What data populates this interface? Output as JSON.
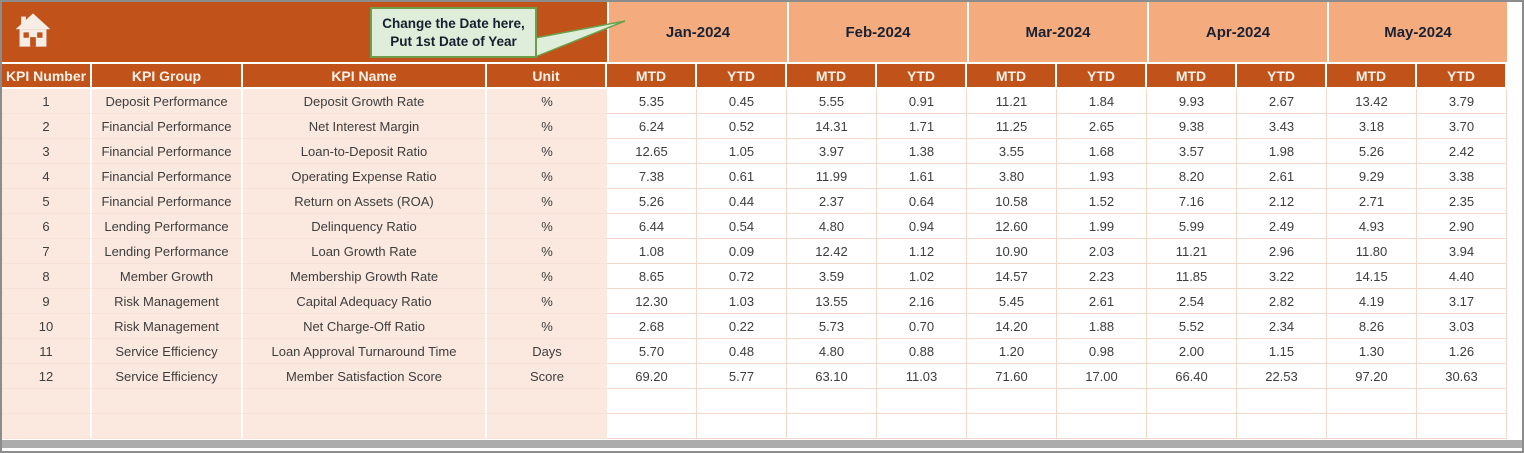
{
  "callout": {
    "line1": "Change the Date here,",
    "line2": "Put 1st Date of Year"
  },
  "icons": {
    "home": "home-icon"
  },
  "table": {
    "months": [
      "Jan-2024",
      "Feb-2024",
      "Mar-2024",
      "Apr-2024",
      "May-2024"
    ],
    "sub_headers": [
      "MTD",
      "YTD"
    ],
    "label_columns": [
      "KPI Number",
      "KPI Group",
      "KPI Name",
      "Unit"
    ],
    "rows": [
      {
        "num": "1",
        "group": "Deposit Performance",
        "name": "Deposit Growth Rate",
        "unit": "%",
        "values": [
          "5.35",
          "0.45",
          "5.55",
          "0.91",
          "11.21",
          "1.84",
          "9.93",
          "2.67",
          "13.42",
          "3.79"
        ]
      },
      {
        "num": "2",
        "group": "Financial Performance",
        "name": "Net Interest Margin",
        "unit": "%",
        "values": [
          "6.24",
          "0.52",
          "14.31",
          "1.71",
          "11.25",
          "2.65",
          "9.38",
          "3.43",
          "3.18",
          "3.70"
        ]
      },
      {
        "num": "3",
        "group": "Financial Performance",
        "name": "Loan-to-Deposit Ratio",
        "unit": "%",
        "values": [
          "12.65",
          "1.05",
          "3.97",
          "1.38",
          "3.55",
          "1.68",
          "3.57",
          "1.98",
          "5.26",
          "2.42"
        ]
      },
      {
        "num": "4",
        "group": "Financial Performance",
        "name": "Operating Expense Ratio",
        "unit": "%",
        "values": [
          "7.38",
          "0.61",
          "11.99",
          "1.61",
          "3.80",
          "1.93",
          "8.20",
          "2.61",
          "9.29",
          "3.38"
        ]
      },
      {
        "num": "5",
        "group": "Financial Performance",
        "name": "Return on Assets (ROA)",
        "unit": "%",
        "values": [
          "5.26",
          "0.44",
          "2.37",
          "0.64",
          "10.58",
          "1.52",
          "7.16",
          "2.12",
          "2.71",
          "2.35"
        ]
      },
      {
        "num": "6",
        "group": "Lending Performance",
        "name": "Delinquency Ratio",
        "unit": "%",
        "values": [
          "6.44",
          "0.54",
          "4.80",
          "0.94",
          "12.60",
          "1.99",
          "5.99",
          "2.49",
          "4.93",
          "2.90"
        ]
      },
      {
        "num": "7",
        "group": "Lending Performance",
        "name": "Loan Growth Rate",
        "unit": "%",
        "values": [
          "1.08",
          "0.09",
          "12.42",
          "1.12",
          "10.90",
          "2.03",
          "11.21",
          "2.96",
          "11.80",
          "3.94"
        ]
      },
      {
        "num": "8",
        "group": "Member Growth",
        "name": "Membership Growth Rate",
        "unit": "%",
        "values": [
          "8.65",
          "0.72",
          "3.59",
          "1.02",
          "14.57",
          "2.23",
          "11.85",
          "3.22",
          "14.15",
          "4.40"
        ]
      },
      {
        "num": "9",
        "group": "Risk Management",
        "name": "Capital Adequacy Ratio",
        "unit": "%",
        "values": [
          "12.30",
          "1.03",
          "13.55",
          "2.16",
          "5.45",
          "2.61",
          "2.54",
          "2.82",
          "4.19",
          "3.17"
        ]
      },
      {
        "num": "10",
        "group": "Risk Management",
        "name": "Net Charge-Off Ratio",
        "unit": "%",
        "values": [
          "2.68",
          "0.22",
          "5.73",
          "0.70",
          "14.20",
          "1.88",
          "5.52",
          "2.34",
          "8.26",
          "3.03"
        ]
      },
      {
        "num": "11",
        "group": "Service Efficiency",
        "name": "Loan Approval Turnaround Time",
        "unit": "Days",
        "values": [
          "5.70",
          "0.48",
          "4.80",
          "0.88",
          "1.20",
          "0.98",
          "2.00",
          "1.15",
          "1.30",
          "1.26"
        ]
      },
      {
        "num": "12",
        "group": "Service Efficiency",
        "name": "Member Satisfaction Score",
        "unit": "Score",
        "values": [
          "69.20",
          "5.77",
          "63.10",
          "11.03",
          "71.60",
          "17.00",
          "66.40",
          "22.53",
          "97.20",
          "30.63"
        ]
      }
    ],
    "empty_rows": 2
  },
  "colors": {
    "accent_dark": "#C0521A",
    "accent_light": "#F4AC7E",
    "row_tint": "#FBE9E0",
    "grid_line": "#F3D8C9",
    "callout_fill": "#DFEEDA",
    "callout_border": "#6E9E4A",
    "header_text": "#FBF1E8",
    "month_text": "#1B2133",
    "frame_border": "#8C8C8C",
    "scrollbar": "#ACACAC"
  }
}
